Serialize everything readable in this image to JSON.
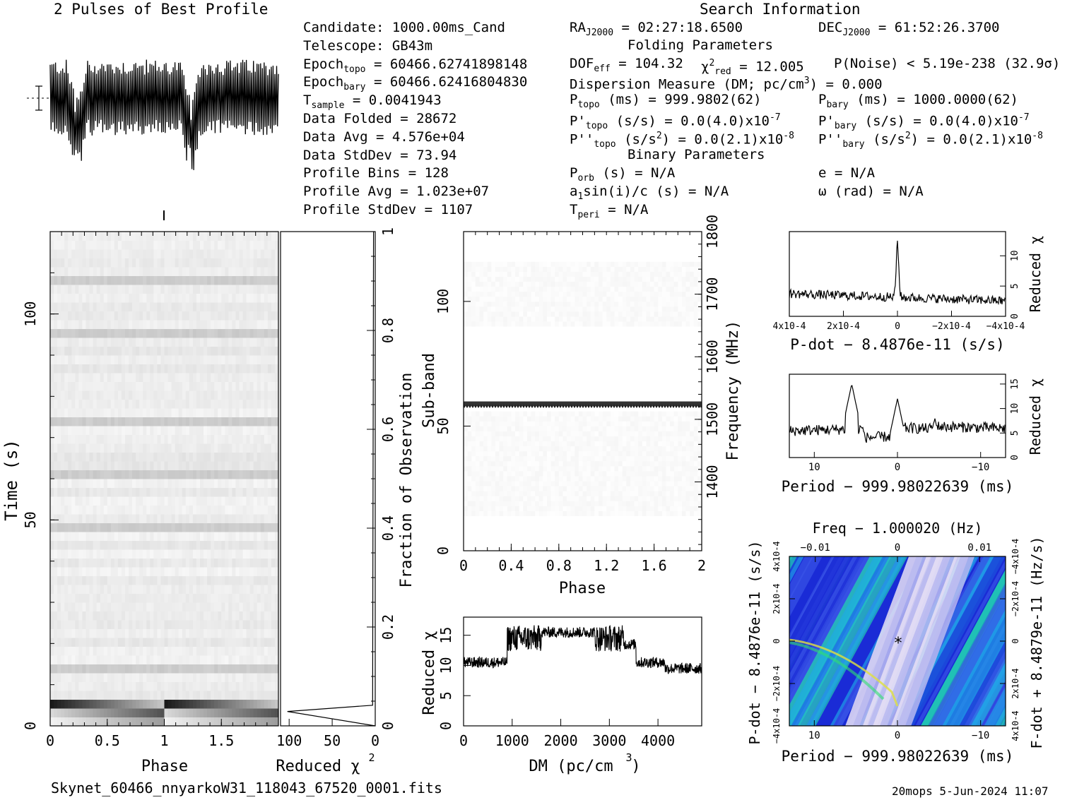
{
  "headers": {
    "profile_title": "2 Pulses of Best Profile",
    "search_info": "Search Information",
    "folding_params": "Folding Parameters",
    "binary_params": "Binary Parameters"
  },
  "info_left": [
    [
      "Candidate:  1000.00ms_Cand"
    ],
    [
      "Telescope:  GB43m"
    ],
    [
      "Epoch",
      "topo",
      " = 60466.62741898148"
    ],
    [
      "Epoch",
      "bary",
      " = 60466.62416804830"
    ],
    [
      "T",
      "sample",
      "         =  0.0041943"
    ],
    [
      "Data Folded     =  28672"
    ],
    [
      "Data Avg        =  4.576e+04"
    ],
    [
      "Data StdDev     =  73.94"
    ],
    [
      "Profile Bins    =  128"
    ],
    [
      "Profile Avg     =  1.023e+07"
    ],
    [
      "Profile StdDev  =  1107"
    ]
  ],
  "search": {
    "ra": "RA",
    "ra_sub": "J2000",
    "ra_val": " = 02:27:18.6500",
    "dec": "DEC",
    "dec_sub": "J2000",
    "dec_val": " = 61:52:26.3700"
  },
  "folding": {
    "dof": "DOF",
    "dof_sub": "eff",
    "dof_val": " = 104.32",
    "chi": "χ",
    "chi_sup": "2",
    "chi_sub": "red",
    "chi_val": " = 12.005",
    "pnoise": "P(Noise) < 5.19e-238   (32.9σ)",
    "dm": "Dispersion Measure (DM; pc/cm",
    "dm_sup": "3",
    "dm_val": ") = 0.000",
    "ptopo": "P",
    "ptopo_sub": "topo",
    "ptopo_val": " (ms) =  999.9802(62)",
    "pbary": "P",
    "pbary_sub": "bary",
    "pbary_val": " (ms) =  1000.0000(62)",
    "pdtopo": "P'",
    "pdtopo_sub": "topo",
    "pdtopo_val": " (s/s) = 0.0(4.0)x10",
    "pdtopo_exp": "-7",
    "pdbary": "P'",
    "pdbary_sub": "bary",
    "pdbary_val": " (s/s) = 0.0(4.0)x10",
    "pdbary_exp": "-7",
    "pddtopo": "P''",
    "pddtopo_sub": "topo",
    "pddtopo_val": " (s/s",
    "pddtopo_sup": "2",
    "pddtopo_val2": ") = 0.0(2.1)x10",
    "pddtopo_exp": "-8",
    "pddbary": "P''",
    "pddbary_sub": "bary",
    "pddbary_val": " (s/s",
    "pddbary_sup": "2",
    "pddbary_val2": ") = 0.0(2.1)x10",
    "pddbary_exp": "-8"
  },
  "binary": {
    "porb": "P",
    "porb_sub": "orb",
    "porb_val": " (s) = N/A",
    "e": "e = N/A",
    "asini": "a",
    "asini_sub": "1",
    "asini_val": "sin(i)/c (s) = N/A",
    "omega": "ω (rad) = N/A",
    "tperi": "T",
    "tperi_sub": "peri",
    "tperi_val": " = N/A"
  },
  "footer": {
    "filename": "Skynet_60466_nnyarkoW31_118043_67520_0001.fits",
    "stamp": "20mops  5-Jun-2024 11:07"
  },
  "axes": {
    "time_ylabel": "Time (s)",
    "phase_xlabel": "Phase",
    "redchi_xlabel": "Reduced χ",
    "fraction_label": "Fraction of Observation",
    "subband_label": "Sub-band",
    "freq_label": "Frequency (MHz)",
    "dm_xlabel": "DM (pc/cm",
    "dm_ylabel": "Reduced χ",
    "pdot_xlabel": "P-dot − 8.4876e-11 (s/s)",
    "period_xlabel": "Period − 999.98022639 (ms)",
    "period2_xlabel": "Period − 999.98022639 (ms)",
    "freq_toplabel": "Freq − 1.000020 (Hz)",
    "pdot_ylabel": "P-dot − 8.4876e-11 (s/s)",
    "fdot_ylabel": "F-dot + 8.4879e-11 (Hz/s)",
    "redchi_right": "Reduced χ"
  },
  "chart_data": [
    {
      "type": "line",
      "title": "2 Pulses of Best Profile",
      "x_range": [
        0,
        2
      ],
      "note": "profile shown twice, dips near phase 0.25 and 1.25"
    },
    {
      "type": "heatmap",
      "name": "time-phase",
      "xlabel": "Phase",
      "ylabel": "Time (s)",
      "xlim": [
        0,
        2
      ],
      "ylim": [
        0,
        120
      ],
      "x_ticks": [
        "0",
        "0.5",
        "1",
        "1.5"
      ],
      "y_ticks": [
        "0",
        "50",
        "100"
      ],
      "right_ticks": [
        "0",
        "0.2",
        "0.4",
        "0.6",
        "0.8",
        "1"
      ]
    },
    {
      "type": "line",
      "name": "time-reduced-chi2",
      "xlabel": "Reduced χ2",
      "x_ticks": [
        "100",
        "50",
        "0"
      ],
      "points": [
        [
          0,
          0
        ],
        [
          102,
          3.5
        ],
        [
          3,
          5
        ],
        [
          2,
          120
        ]
      ]
    },
    {
      "type": "heatmap",
      "name": "subband-phase",
      "xlabel": "Phase",
      "ylabel": "Sub-band",
      "xlim": [
        0,
        2
      ],
      "ylim": [
        0,
        128
      ],
      "x_ticks": [
        "0",
        "0.4",
        "0.8",
        "1.2",
        "1.6",
        "2"
      ],
      "y_ticks": [
        "0",
        "50",
        "100"
      ],
      "freq_ticks": [
        "1400",
        "1500",
        "1600",
        "1700",
        "1800"
      ],
      "flagged_subband": 58
    },
    {
      "type": "line",
      "name": "dm-reduced-chi2",
      "xlabel": "DM (pc/cm3)",
      "ylabel": "Reduced χ2",
      "xlim": [
        0,
        4900
      ],
      "ylim": [
        0,
        18
      ],
      "x_ticks": [
        "0",
        "1000",
        "2000",
        "3000",
        "4000"
      ],
      "y_ticks": [
        "0",
        "5",
        "10",
        "15"
      ],
      "segments": [
        {
          "x": [
            0,
            900
          ],
          "y": 10.5
        },
        {
          "x": [
            900,
            1600
          ],
          "y": 14.5
        },
        {
          "x": [
            1600,
            2700
          ],
          "y": 15.5
        },
        {
          "x": [
            2700,
            3300
          ],
          "y": 14.5
        },
        {
          "x": [
            3300,
            3550
          ],
          "y": 13.5
        },
        {
          "x": [
            3550,
            4150
          ],
          "y": 10.5
        },
        {
          "x": [
            4150,
            4900
          ],
          "y": 9.5
        }
      ]
    },
    {
      "type": "line",
      "name": "pdot-reduced-chi2",
      "xlabel": "P-dot − 8.4876e-11 (s/s)",
      "ylabel": "Reduced χ2",
      "x_ticks": [
        "4x10-4",
        "2x10-4",
        "0",
        "−2x10-4",
        "−4x10-4"
      ],
      "y_ticks": [
        "0",
        "5",
        "10"
      ],
      "peak": {
        "x": 0,
        "y": 12.5
      }
    },
    {
      "type": "line",
      "name": "period-reduced-chi2",
      "xlabel": "Period − 999.98022639 (ms)",
      "ylabel": "Reduced χ2",
      "x_ticks": [
        "10",
        "0",
        "−10"
      ],
      "y_ticks": [
        "0",
        "5",
        "10",
        "15"
      ],
      "peaks": [
        {
          "x": 5.5,
          "y": 15
        },
        {
          "x": 0,
          "y": 12
        },
        {
          "x": -4.5,
          "y": 8
        }
      ]
    },
    {
      "type": "heatmap",
      "name": "period-pdot",
      "xlabel": "Period − 999.98022639 (ms)",
      "ylabel": "P-dot − 8.4876e-11 (s/s)",
      "x_ticks": [
        "10",
        "0",
        "−10"
      ],
      "top_ticks": [
        "−0.01",
        "0",
        "0.01"
      ],
      "y_ticks": [
        "−4x10-4",
        "−2x10-4",
        "0",
        "2x10-4",
        "4x10-4"
      ],
      "right_ticks": [
        "4x10-4",
        "2x10-4",
        "0",
        "−2x10-4",
        "−4x10-4"
      ],
      "colors": [
        "#1a2bd6",
        "#3a56e6",
        "#20a8e8",
        "#22d6b0",
        "#b8b8f0",
        "#e8e0f4"
      ]
    }
  ]
}
